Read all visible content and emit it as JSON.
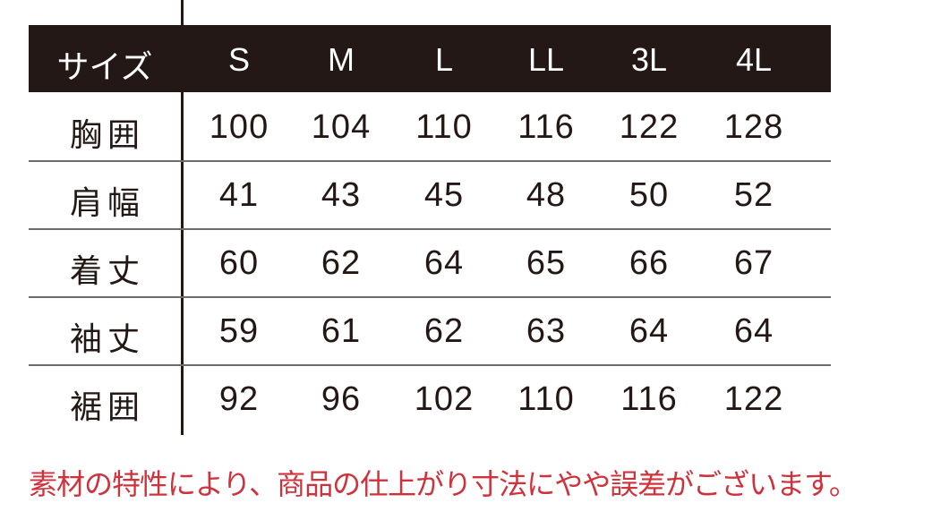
{
  "table": {
    "header_label": "サイズ",
    "sizes": [
      "S",
      "M",
      "L",
      "LL",
      "3L",
      "4L"
    ],
    "rows": [
      {
        "label": "胸囲",
        "values": [
          "100",
          "104",
          "110",
          "116",
          "122",
          "128"
        ]
      },
      {
        "label": "肩幅",
        "values": [
          "41",
          "43",
          "45",
          "48",
          "50",
          "52"
        ]
      },
      {
        "label": "着丈",
        "values": [
          "60",
          "62",
          "64",
          "65",
          "66",
          "67"
        ]
      },
      {
        "label": "袖丈",
        "values": [
          "59",
          "61",
          "62",
          "63",
          "64",
          "64"
        ]
      },
      {
        "label": "裾囲",
        "values": [
          "92",
          "96",
          "102",
          "110",
          "116",
          "122"
        ]
      }
    ]
  },
  "note": "素材の特性により、商品の仕上がり寸法にやや誤差がございます。",
  "colors": {
    "header_bg": "#231815",
    "note": "#d0323c"
  }
}
